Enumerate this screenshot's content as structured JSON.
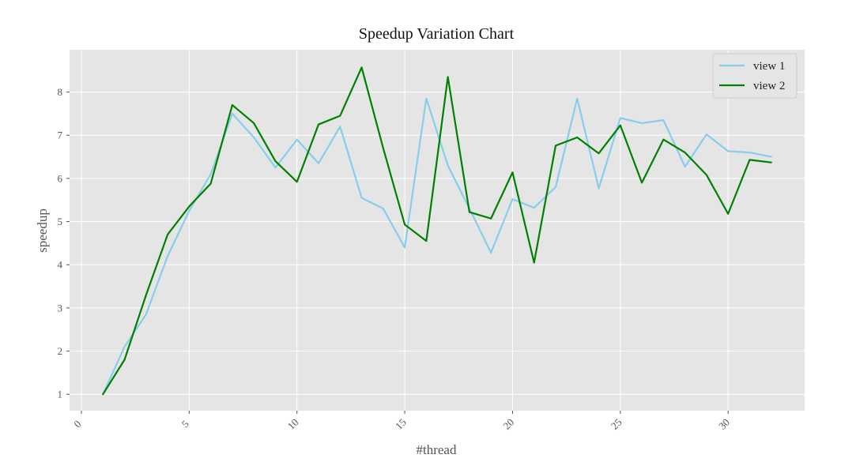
{
  "chart_data": {
    "type": "line",
    "title": "Speedup Variation Chart",
    "xlabel": "#thread",
    "ylabel": "speedup",
    "xlim": [
      -0.55,
      33.55
    ],
    "ylim": [
      0.62,
      8.98
    ],
    "xticks": [
      0,
      5,
      10,
      15,
      20,
      25,
      30
    ],
    "yticks": [
      1,
      2,
      3,
      4,
      5,
      6,
      7,
      8
    ],
    "grid": true,
    "legend_position": "top-right",
    "background_color": "#e5e5e5",
    "grid_color": "#ffffff",
    "x": [
      1,
      2,
      3,
      4,
      5,
      6,
      7,
      8,
      9,
      10,
      11,
      12,
      13,
      14,
      15,
      16,
      17,
      18,
      19,
      20,
      21,
      22,
      23,
      24,
      25,
      26,
      27,
      28,
      29,
      30,
      31,
      32
    ],
    "series": [
      {
        "name": "view 1",
        "color": "#87ceeb",
        "values": [
          1.0,
          2.1,
          2.85,
          4.2,
          5.25,
          6.1,
          7.5,
          6.95,
          6.25,
          6.9,
          6.35,
          7.2,
          5.55,
          5.3,
          4.4,
          7.85,
          6.3,
          5.3,
          4.28,
          5.52,
          5.32,
          5.8,
          7.85,
          5.77,
          7.4,
          7.28,
          7.35,
          6.27,
          7.02,
          6.63,
          6.6,
          6.5
        ]
      },
      {
        "name": "view 2",
        "color": "#008000",
        "values": [
          1.0,
          1.8,
          3.3,
          4.7,
          5.35,
          5.88,
          7.7,
          7.28,
          6.4,
          5.92,
          7.25,
          7.45,
          8.57,
          6.7,
          4.93,
          4.55,
          8.35,
          5.22,
          5.07,
          6.14,
          4.05,
          6.76,
          6.95,
          6.58,
          7.23,
          5.9,
          6.9,
          6.6,
          6.08,
          5.18,
          6.43,
          6.37
        ]
      }
    ]
  }
}
